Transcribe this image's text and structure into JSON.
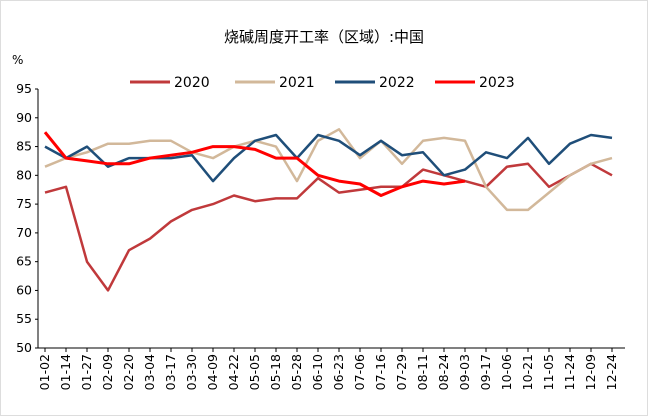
{
  "chart_data": {
    "type": "line",
    "title": "烧碱周度开工率（区域）:中国",
    "y_unit": "%",
    "categories": [
      "01-02",
      "01-14",
      "01-27",
      "02-09",
      "02-20",
      "03-04",
      "03-17",
      "03-30",
      "04-09",
      "04-22",
      "05-05",
      "05-18",
      "05-28",
      "06-10",
      "06-23",
      "07-06",
      "07-16",
      "07-29",
      "08-11",
      "08-24",
      "09-03",
      "09-17",
      "10-06",
      "10-21",
      "11-05",
      "11-24",
      "12-09",
      "12-24"
    ],
    "series": [
      {
        "name": "2020",
        "color": "#c0393b",
        "values": [
          77,
          78,
          65,
          60,
          67,
          69,
          72,
          74,
          75,
          76.5,
          75.5,
          76,
          76,
          79.5,
          77,
          77.5,
          78,
          78,
          81,
          80,
          79,
          78,
          81.5,
          82,
          78,
          80,
          82,
          80
        ]
      },
      {
        "name": "2021",
        "color": "#d2b89a",
        "values": [
          81.5,
          83,
          84,
          85.5,
          85.5,
          86,
          86,
          84,
          83,
          85,
          86,
          85,
          79,
          86,
          88,
          83,
          86,
          82,
          86,
          86.5,
          86,
          78,
          74,
          74,
          77,
          80,
          82,
          83
        ]
      },
      {
        "name": "2022",
        "color": "#1f4e79",
        "values": [
          85,
          83,
          85,
          81.5,
          83,
          83,
          83,
          83.5,
          79,
          83,
          86,
          87,
          83,
          87,
          86,
          83.5,
          86,
          83.5,
          84,
          80,
          81,
          84,
          83,
          86.5,
          82,
          85.5,
          87,
          86.5
        ]
      },
      {
        "name": "2023",
        "color": "#ff0000",
        "values": [
          87.5,
          83,
          82.5,
          82,
          82,
          83,
          83.5,
          84,
          85,
          85,
          84.5,
          83,
          83,
          80,
          79,
          78.5,
          76.5,
          78,
          79,
          78.5,
          79,
          null,
          null,
          null,
          null,
          null,
          null,
          null
        ]
      }
    ],
    "ylim": [
      50,
      95
    ],
    "yticks": [
      50,
      55,
      60,
      65,
      70,
      75,
      80,
      85,
      90,
      95
    ],
    "legend": "top"
  }
}
